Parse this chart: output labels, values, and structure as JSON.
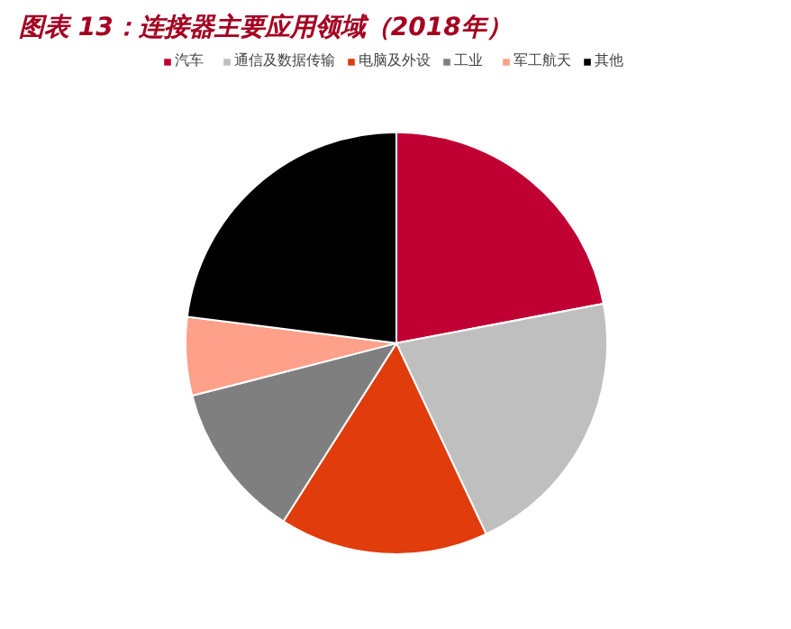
{
  "chart_data": {
    "type": "pie",
    "title": "图表 13：连接器主要应用领域（2018年）",
    "categories": [
      "汽车",
      "通信及数据传输",
      "电脑及外设",
      "工业",
      "军工航天",
      "其他"
    ],
    "values": [
      22,
      21,
      16,
      12,
      6,
      23
    ],
    "colors": [
      "#c00033",
      "#bfbfbf",
      "#e03c0c",
      "#7f7f7f",
      "#ffa08a",
      "#000000"
    ],
    "legend": "top"
  }
}
